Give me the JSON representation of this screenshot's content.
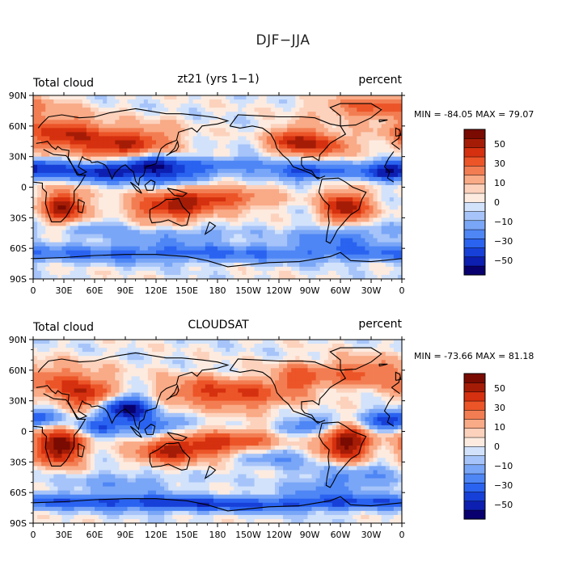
{
  "figure": {
    "title": "DJF−JJA"
  },
  "colors": {
    "levels": [
      -60,
      -50,
      -40,
      -30,
      -20,
      -10,
      -5,
      0,
      5,
      10,
      20,
      30,
      40,
      50,
      60
    ],
    "fills": [
      "#08006e",
      "#0d1fb0",
      "#1740d8",
      "#2a63f0",
      "#4e86f5",
      "#7aa6f7",
      "#a6c4f9",
      "#d2e2fb",
      "#fdebe0",
      "#fcd2bd",
      "#f9aa86",
      "#f37d52",
      "#ec5528",
      "#d5300f",
      "#a51c06",
      "#7a0b02"
    ],
    "land_outline": "#000000"
  },
  "chart_data": [
    {
      "type": "heatmap",
      "variable_label": "Total cloud",
      "title": "zt21 (yrs 1−1)",
      "units_label": "percent",
      "stats_text": "MIN = -84.05  MAX =  79.07",
      "min": -84.05,
      "max": 79.07,
      "x_ticks": [
        "0",
        "30E",
        "60E",
        "90E",
        "120E",
        "150E",
        "180",
        "150W",
        "120W",
        "90W",
        "60W",
        "30W",
        "0"
      ],
      "y_ticks": [
        "90N",
        "60N",
        "30N",
        "0",
        "30S",
        "60S",
        "90S"
      ],
      "colorbar_labels": [
        "50",
        "30",
        "10",
        "0",
        "−10",
        "−30",
        "−50"
      ],
      "xlim": [
        0,
        360
      ],
      "ylim": [
        -90,
        90
      ]
    },
    {
      "type": "heatmap",
      "variable_label": "Total cloud",
      "title": "CLOUDSAT",
      "units_label": "percent",
      "stats_text": "MIN = -73.66  MAX =  81.18",
      "min": -73.66,
      "max": 81.18,
      "x_ticks": [
        "0",
        "30E",
        "60E",
        "90E",
        "120E",
        "150E",
        "180",
        "150W",
        "120W",
        "90W",
        "60W",
        "30W",
        "0"
      ],
      "y_ticks": [
        "90N",
        "60N",
        "30N",
        "0",
        "30S",
        "60S",
        "90S"
      ],
      "colorbar_labels": [
        "50",
        "30",
        "10",
        "0",
        "−10",
        "−30",
        "−50"
      ],
      "xlim": [
        0,
        360
      ],
      "ylim": [
        -90,
        90
      ]
    }
  ]
}
